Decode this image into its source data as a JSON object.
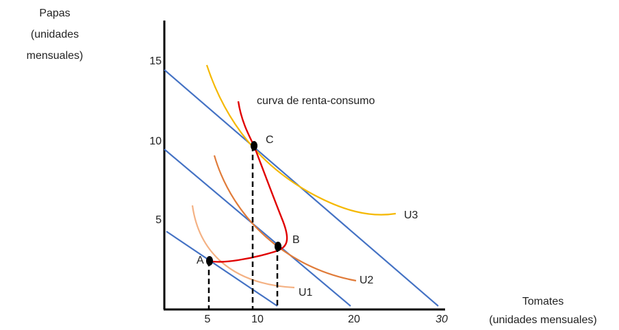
{
  "y_axis": {
    "label": [
      "Papas",
      "(unidades",
      "mensuales)"
    ],
    "ticks": [
      "15",
      "10",
      "5"
    ]
  },
  "x_axis": {
    "label": [
      "Tomates",
      "(unidades mensuales)"
    ],
    "ticks": [
      "5",
      "10",
      "20",
      "30"
    ]
  },
  "curve_label": "curva de renta-consumo",
  "indifference_curves": [
    "U1",
    "U2",
    "U3"
  ],
  "points": [
    "A",
    "B",
    "C"
  ]
}
